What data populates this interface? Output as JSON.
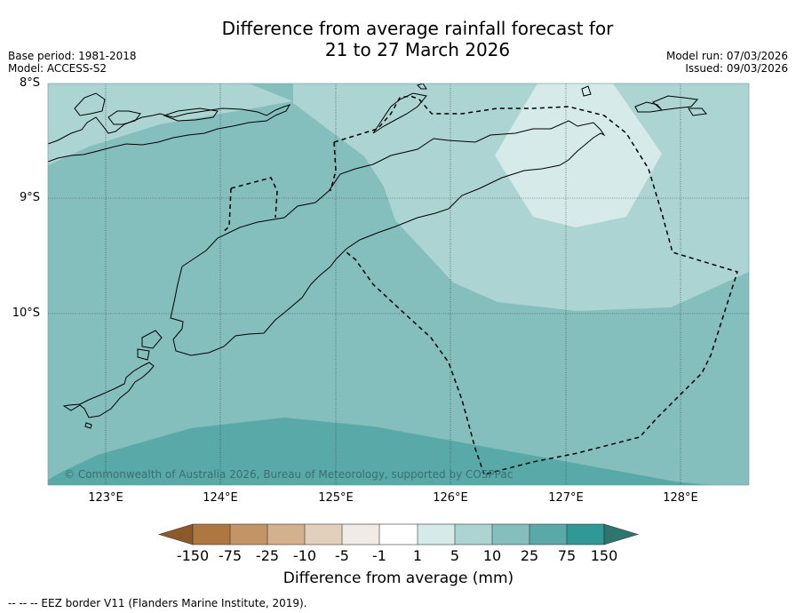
{
  "header": {
    "title_line1": "Difference from average rainfall forecast for",
    "title_line2": "21 to 27 March 2026",
    "base_period": "Base period: 1981-2018",
    "model": "Model: ACCESS-S2",
    "model_run": "Model run: 07/03/2026",
    "issued": "Issued: 09/03/2026"
  },
  "map": {
    "lat_labels": [
      "8°S",
      "9°S",
      "10°S"
    ],
    "lon_labels": [
      "123°E",
      "124°E",
      "125°E",
      "126°E",
      "127°E",
      "128°E"
    ],
    "copyright": "© Commonwealth of Australia 2026, Bureau of Meteorology, supported by COSPPac",
    "category_colors": {
      "1_to_5": "#d5eae9",
      "5_to_10": "#acd4d3",
      "10_to_25": "#84bfbe",
      "25_to_75": "#5aa9a9"
    }
  },
  "colorbar": {
    "tick_labels": [
      "-150",
      "-75",
      "-25",
      "-10",
      "-5",
      "-1",
      "1",
      "5",
      "10",
      "25",
      "75",
      "150"
    ],
    "colors": [
      "#8c5a2a",
      "#ad773f",
      "#c29466",
      "#d3b08e",
      "#e3d0bc",
      "#f0ebe6",
      "#ffffff",
      "#d5eae9",
      "#acd4d3",
      "#84bfbe",
      "#5aa9a9",
      "#2e9995",
      "#2e7470"
    ],
    "title": "Difference from average (mm)"
  },
  "footer": {
    "legend_note": "--  --  -- EEZ border V11 (Flanders Marine Institute, 2019)."
  }
}
